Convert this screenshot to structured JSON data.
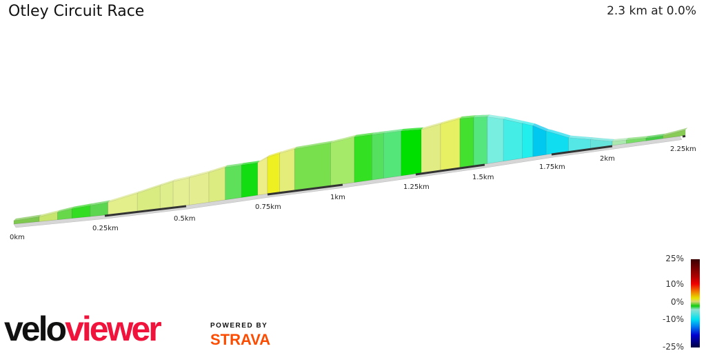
{
  "header": {
    "title": "Otley Circuit Race",
    "summary": "2.3 km at 0.0%"
  },
  "chart_data": {
    "type": "area",
    "title": "Otley Circuit Race",
    "x_unit": "km",
    "x_ticks": [
      "0km",
      "0.25km",
      "0.5km",
      "0.75km",
      "1km",
      "1.25km",
      "1.5km",
      "1.75km",
      "2km",
      "2.25km"
    ],
    "x_tick_values": [
      0,
      0.25,
      0.5,
      0.75,
      1,
      1.25,
      1.5,
      1.75,
      2,
      2.25
    ],
    "xlim": [
      0,
      2.26
    ],
    "elevation_profile_relative": [
      [
        0,
        5
      ],
      [
        0.07,
        7
      ],
      [
        0.16,
        14
      ],
      [
        0.26,
        18
      ],
      [
        0.35,
        26
      ],
      [
        0.46,
        37
      ],
      [
        0.57,
        43
      ],
      [
        0.62,
        47
      ],
      [
        0.72,
        47
      ],
      [
        0.75,
        53
      ],
      [
        0.84,
        60
      ],
      [
        0.96,
        62
      ],
      [
        1.04,
        66
      ],
      [
        1.2,
        65
      ],
      [
        1.27,
        63
      ],
      [
        1.34,
        67
      ],
      [
        1.41,
        71
      ],
      [
        1.46,
        70
      ],
      [
        1.51,
        68
      ],
      [
        1.57,
        61
      ],
      [
        1.68,
        45
      ],
      [
        1.73,
        34
      ],
      [
        1.82,
        20
      ],
      [
        1.91,
        13
      ],
      [
        2.0,
        6
      ],
      [
        2.12,
        4
      ],
      [
        2.18,
        4
      ],
      [
        2.26,
        8
      ]
    ],
    "segments": [
      {
        "from": 0,
        "to": 0.07,
        "color": "#7ec850"
      },
      {
        "from": 0.07,
        "to": 0.12,
        "color": "#c8e66e"
      },
      {
        "from": 0.12,
        "to": 0.16,
        "color": "#66d84a"
      },
      {
        "from": 0.16,
        "to": 0.21,
        "color": "#33dd22"
      },
      {
        "from": 0.21,
        "to": 0.26,
        "color": "#5cd650"
      },
      {
        "from": 0.26,
        "to": 0.35,
        "color": "#e2ef8a"
      },
      {
        "from": 0.35,
        "to": 0.42,
        "color": "#d9ec82"
      },
      {
        "from": 0.42,
        "to": 0.46,
        "color": "#dfee8c"
      },
      {
        "from": 0.46,
        "to": 0.51,
        "color": "#e4ef94"
      },
      {
        "from": 0.51,
        "to": 0.57,
        "color": "#e4ee90"
      },
      {
        "from": 0.57,
        "to": 0.62,
        "color": "#dcec80"
      },
      {
        "from": 0.62,
        "to": 0.67,
        "color": "#5ee05a"
      },
      {
        "from": 0.67,
        "to": 0.72,
        "color": "#11dd11"
      },
      {
        "from": 0.72,
        "to": 0.75,
        "color": "#eeee88"
      },
      {
        "from": 0.75,
        "to": 0.79,
        "color": "#eef022"
      },
      {
        "from": 0.79,
        "to": 0.84,
        "color": "#e4ec7a"
      },
      {
        "from": 0.84,
        "to": 0.96,
        "color": "#77e04c"
      },
      {
        "from": 0.96,
        "to": 1.04,
        "color": "#a6ea6a"
      },
      {
        "from": 1.04,
        "to": 1.1,
        "color": "#33e022"
      },
      {
        "from": 1.1,
        "to": 1.14,
        "color": "#55e060"
      },
      {
        "from": 1.14,
        "to": 1.2,
        "color": "#55e67a"
      },
      {
        "from": 1.2,
        "to": 1.27,
        "color": "#00e000"
      },
      {
        "from": 1.27,
        "to": 1.34,
        "color": "#e2ec84"
      },
      {
        "from": 1.34,
        "to": 1.41,
        "color": "#e6f062"
      },
      {
        "from": 1.41,
        "to": 1.46,
        "color": "#44e030"
      },
      {
        "from": 1.46,
        "to": 1.51,
        "color": "#55e680"
      },
      {
        "from": 1.51,
        "to": 1.57,
        "color": "#77eee0"
      },
      {
        "from": 1.57,
        "to": 1.64,
        "color": "#44eee6"
      },
      {
        "from": 1.64,
        "to": 1.68,
        "color": "#22eeee"
      },
      {
        "from": 1.68,
        "to": 1.73,
        "color": "#00c8ee"
      },
      {
        "from": 1.73,
        "to": 1.82,
        "color": "#11ddf0"
      },
      {
        "from": 1.82,
        "to": 1.91,
        "color": "#55e6e6"
      },
      {
        "from": 1.91,
        "to": 2.0,
        "color": "#66e4dc"
      },
      {
        "from": 2.0,
        "to": 2.05,
        "color": "#aae8b0"
      },
      {
        "from": 2.05,
        "to": 2.12,
        "color": "#77dd66"
      },
      {
        "from": 2.12,
        "to": 2.18,
        "color": "#44cc44"
      },
      {
        "from": 2.18,
        "to": 2.26,
        "color": "#88cc55"
      }
    ],
    "legend": {
      "title": "",
      "labels": [
        "25%",
        "10%",
        "0%",
        "-10%",
        "-25%"
      ],
      "placement": "bottom-right"
    }
  },
  "branding": {
    "logo_velo": "velo",
    "logo_viewer": "viewer",
    "powered_by": "POWERED BY",
    "strava": "STRAVA"
  }
}
